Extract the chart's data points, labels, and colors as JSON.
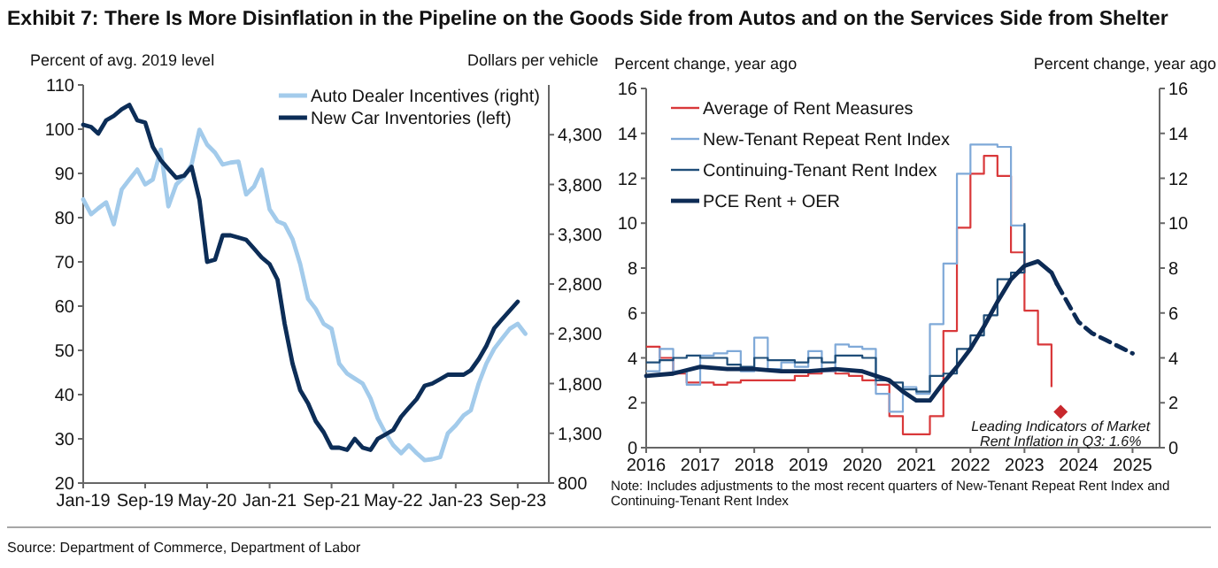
{
  "chart_data": [
    {
      "type": "line",
      "title": "Exhibit 7: There Is More Disinflation in the Pipeline on the Goods Side from Autos and on the Services Side from Shelter",
      "ylabel": "Percent of avg. 2019 level",
      "y2label": "Dollars per vehicle",
      "legend": "top",
      "xlim": [
        "2019-01",
        "2024-01"
      ],
      "xticks": [
        {
          "value": "2019-01",
          "label": "Jan-19"
        },
        {
          "value": "2019-09",
          "label": "Sep-19"
        },
        {
          "value": "2020-05",
          "label": "May-20"
        },
        {
          "value": "2021-01",
          "label": "Jan-21"
        },
        {
          "value": "2021-09",
          "label": "Sep-21"
        },
        {
          "value": "2022-05",
          "label": "May-22"
        },
        {
          "value": "2023-01",
          "label": "Jan-23"
        },
        {
          "value": "2023-09",
          "label": "Sep-23"
        }
      ],
      "ylim": [
        20,
        110
      ],
      "yticks": [
        20,
        30,
        40,
        50,
        60,
        70,
        80,
        90,
        100,
        110
      ],
      "y2lim": [
        800,
        4800
      ],
      "y2ticks": [
        {
          "value": 800,
          "label": "800"
        },
        {
          "value": 1300,
          "label": "1,300"
        },
        {
          "value": 1800,
          "label": "1,800"
        },
        {
          "value": 2300,
          "label": "2,300"
        },
        {
          "value": 2800,
          "label": "2,800"
        },
        {
          "value": 3300,
          "label": "3,300"
        },
        {
          "value": 3800,
          "label": "3,800"
        },
        {
          "value": 4300,
          "label": "4,300"
        }
      ],
      "x": [
        "2019-01",
        "2019-02",
        "2019-03",
        "2019-04",
        "2019-05",
        "2019-06",
        "2019-07",
        "2019-08",
        "2019-09",
        "2019-10",
        "2019-11",
        "2019-12",
        "2020-01",
        "2020-02",
        "2020-03",
        "2020-04",
        "2020-05",
        "2020-06",
        "2020-07",
        "2020-08",
        "2020-09",
        "2020-10",
        "2020-11",
        "2020-12",
        "2021-01",
        "2021-02",
        "2021-03",
        "2021-04",
        "2021-05",
        "2021-06",
        "2021-07",
        "2021-08",
        "2021-09",
        "2021-10",
        "2021-11",
        "2021-12",
        "2022-01",
        "2022-02",
        "2022-03",
        "2022-04",
        "2022-05",
        "2022-06",
        "2022-07",
        "2022-08",
        "2022-09",
        "2022-10",
        "2022-11",
        "2022-12",
        "2023-01",
        "2023-02",
        "2023-03",
        "2023-04",
        "2023-05",
        "2023-06",
        "2023-07",
        "2023-08",
        "2023-09"
      ],
      "series": [
        {
          "name": "Auto Dealer Incentives (right)",
          "color": "#a3cbeb",
          "axis": "y2",
          "x": [
            "2019-01",
            "2019-02",
            "2019-03",
            "2019-04",
            "2019-05",
            "2019-06",
            "2019-07",
            "2019-08",
            "2019-09",
            "2019-10",
            "2019-11",
            "2019-12",
            "2020-01",
            "2020-02",
            "2020-03",
            "2020-04",
            "2020-05",
            "2020-06",
            "2020-07",
            "2020-08",
            "2020-09",
            "2020-10",
            "2020-11",
            "2020-12",
            "2021-01",
            "2021-02",
            "2021-03",
            "2021-04",
            "2021-05",
            "2021-06",
            "2021-07",
            "2021-08",
            "2021-09",
            "2021-10",
            "2021-11",
            "2021-12",
            "2022-01",
            "2022-02",
            "2022-03",
            "2022-04",
            "2022-05",
            "2022-06",
            "2022-07",
            "2022-08",
            "2022-09",
            "2022-10",
            "2022-11",
            "2022-12",
            "2023-01",
            "2023-02",
            "2023-03",
            "2023-04",
            "2023-05",
            "2023-06",
            "2023-07",
            "2023-08",
            "2023-09",
            "2023-10"
          ],
          "values": [
            3650,
            3500,
            3560,
            3620,
            3400,
            3750,
            3850,
            3950,
            3800,
            3850,
            4150,
            3580,
            3800,
            3880,
            4000,
            4350,
            4200,
            4120,
            4000,
            4020,
            4030,
            3700,
            3780,
            3950,
            3550,
            3430,
            3400,
            3250,
            3000,
            2650,
            2550,
            2400,
            2350,
            2000,
            1900,
            1850,
            1800,
            1650,
            1450,
            1300,
            1180,
            1100,
            1180,
            1100,
            1030,
            1040,
            1060,
            1300,
            1380,
            1480,
            1530,
            1800,
            2000,
            2150,
            2250,
            2350,
            2400,
            2300
          ]
        },
        {
          "name": "New Car Inventories (left)",
          "color": "#0c2d57",
          "values": [
            101,
            100.5,
            99,
            102,
            103,
            104.5,
            105.5,
            102,
            101.5,
            96,
            93,
            91,
            89,
            89.5,
            91.5,
            84,
            70,
            70.5,
            76,
            76,
            75.5,
            75,
            73,
            71,
            69.5,
            66,
            56,
            47,
            41,
            38,
            34,
            31.5,
            28,
            28,
            27.5,
            30,
            28,
            27.5,
            30,
            31,
            32,
            35,
            37,
            39,
            42,
            42.5,
            43.5,
            44.5,
            44.5,
            44.5,
            45.5,
            48,
            51,
            55,
            57,
            59,
            61
          ]
        }
      ]
    },
    {
      "type": "line",
      "ylabel": "Percent change, year ago",
      "y2label": "Percent change, year ago",
      "legend": "top left",
      "xlim": [
        2016,
        2025.5
      ],
      "xticks": [
        2016,
        2017,
        2018,
        2019,
        2020,
        2021,
        2022,
        2023,
        2024,
        2025
      ],
      "ylim": [
        0,
        16
      ],
      "yticks": [
        0,
        2,
        4,
        6,
        8,
        10,
        12,
        14,
        16
      ],
      "y2lim": [
        0,
        16
      ],
      "y2ticks": [
        0,
        2,
        4,
        6,
        8,
        10,
        12,
        14,
        16
      ],
      "annotations": [
        "Note: Includes adjustments to the most recent quarters of New-Tenant Repeat Rent Index and Continuing-Tenant Rent Index",
        {
          "text": "Leading Indicators of Market Rent Inflation in Q3: 1.6%",
          "x": 2023.67,
          "y": 1.6
        },
        "Source: Department of Commerce, Department of Labor"
      ],
      "series": [
        {
          "name": "Average of Rent Measures",
          "type": "step",
          "color": "#d9383a",
          "x": [
            2016,
            2016.25,
            2016.5,
            2016.75,
            2017,
            2017.25,
            2017.5,
            2017.75,
            2018,
            2018.25,
            2018.5,
            2018.75,
            2019,
            2019.25,
            2019.5,
            2019.75,
            2020,
            2020.25,
            2020.5,
            2020.75,
            2021,
            2021.25,
            2021.5,
            2021.75,
            2022,
            2022.25,
            2022.5,
            2022.75,
            2023,
            2023.25,
            2023.5
          ],
          "values": [
            4.5,
            4.0,
            3.3,
            2.9,
            2.9,
            2.8,
            2.9,
            3.0,
            3.0,
            3.0,
            3.0,
            3.2,
            3.3,
            3.4,
            3.3,
            3.2,
            3.0,
            2.8,
            1.4,
            0.6,
            0.6,
            1.4,
            5.2,
            9.8,
            12.2,
            13.0,
            12.1,
            8.7,
            6.1,
            4.6,
            2.7
          ]
        },
        {
          "name": "New-Tenant Repeat Rent Index",
          "type": "step",
          "color": "#7fa9d8",
          "x": [
            2016,
            2016.25,
            2016.5,
            2016.75,
            2017,
            2017.25,
            2017.5,
            2017.75,
            2018,
            2018.25,
            2018.5,
            2018.75,
            2019,
            2019.25,
            2019.5,
            2019.75,
            2020,
            2020.25,
            2020.5,
            2020.75,
            2021,
            2021.25,
            2021.5,
            2021.75,
            2022,
            2022.25,
            2022.5,
            2022.75,
            2023
          ],
          "values": [
            3.4,
            4.4,
            3.4,
            2.8,
            4.1,
            4.2,
            4.3,
            3.4,
            4.9,
            3.5,
            3.8,
            3.6,
            4.3,
            3.4,
            4.6,
            4.5,
            4.4,
            2.4,
            1.6,
            2.7,
            2.4,
            5.5,
            8.2,
            12.2,
            13.5,
            13.5,
            13.4,
            9.9,
            8.4
          ]
        },
        {
          "name": "Continuing-Tenant Rent Index",
          "type": "step",
          "color": "#1f4e79",
          "x": [
            2016,
            2016.25,
            2016.5,
            2016.75,
            2017,
            2017.25,
            2017.5,
            2017.75,
            2018,
            2018.25,
            2018.5,
            2018.75,
            2019,
            2019.25,
            2019.5,
            2019.75,
            2020,
            2020.25,
            2020.5,
            2020.75,
            2021,
            2021.25,
            2021.5,
            2021.75,
            2022,
            2022.25,
            2022.5,
            2022.75,
            2023
          ],
          "values": [
            3.8,
            3.9,
            4.0,
            4.1,
            4.0,
            4.0,
            3.7,
            3.6,
            4.0,
            3.9,
            3.9,
            3.8,
            4.0,
            3.8,
            4.1,
            4.1,
            4.0,
            3.0,
            2.9,
            2.6,
            2.5,
            3.2,
            3.3,
            4.4,
            5.0,
            5.9,
            7.5,
            7.8,
            10.0
          ]
        },
        {
          "name": "PCE Rent + OER",
          "color": "#0d2b55",
          "x": [
            2016,
            2016.5,
            2017,
            2017.5,
            2018,
            2018.5,
            2019,
            2019.5,
            2020,
            2020.5,
            2020.75,
            2021,
            2021.25,
            2021.5,
            2021.75,
            2022,
            2022.25,
            2022.5,
            2022.75,
            2023,
            2023.25,
            2023.5,
            2023.6
          ],
          "values": [
            3.2,
            3.3,
            3.6,
            3.5,
            3.5,
            3.4,
            3.4,
            3.5,
            3.4,
            3.0,
            2.5,
            2.1,
            2.1,
            2.9,
            3.6,
            4.4,
            5.4,
            6.5,
            7.5,
            8.1,
            8.3,
            7.8,
            7.3
          ]
        },
        {
          "color": "#0d2b55",
          "line_style": "dashed",
          "x": [
            2023.6,
            2024,
            2024.25,
            2024.5,
            2025
          ],
          "values": [
            7.3,
            5.6,
            5.1,
            4.8,
            4.2
          ]
        },
        {
          "type": "scatter",
          "marker": "diamond",
          "color": "#c8282d",
          "x": [
            2023.67
          ],
          "values": [
            1.6
          ]
        }
      ]
    }
  ]
}
